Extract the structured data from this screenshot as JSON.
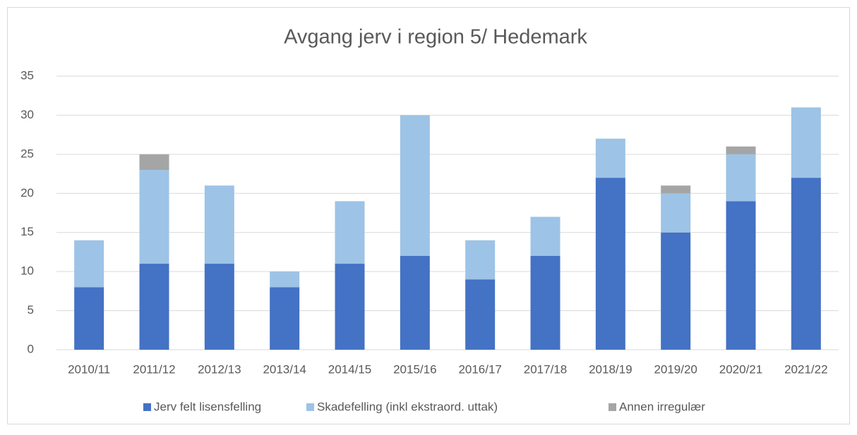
{
  "chart_data": {
    "type": "stacked_bar",
    "title": "Avgang jerv i region 5/ Hedemark",
    "categories": [
      "2010/11",
      "2011/12",
      "2012/13",
      "2013/14",
      "2014/15",
      "2015/16",
      "2016/17",
      "2017/18",
      "2018/19",
      "2019/20",
      "2020/21",
      "2021/22"
    ],
    "series": [
      {
        "name": "Jerv felt lisensfelling",
        "color": "#4472c4",
        "values": [
          8,
          11,
          11,
          8,
          11,
          12,
          9,
          12,
          22,
          15,
          19,
          22
        ]
      },
      {
        "name": "Skadefelling (inkl ekstraord. uttak)",
        "color": "#9dc3e6",
        "values": [
          6,
          12,
          10,
          2,
          8,
          18,
          5,
          5,
          5,
          5,
          6,
          9
        ]
      },
      {
        "name": "Annen irregulær",
        "color": "#a5a5a5",
        "values": [
          0,
          2,
          0,
          0,
          0,
          0,
          0,
          0,
          0,
          1,
          1,
          0
        ]
      }
    ],
    "ylim": [
      0,
      35
    ],
    "yticks": [
      0,
      5,
      10,
      15,
      20,
      25,
      30,
      35
    ],
    "grid": true,
    "legend": "bottom"
  }
}
